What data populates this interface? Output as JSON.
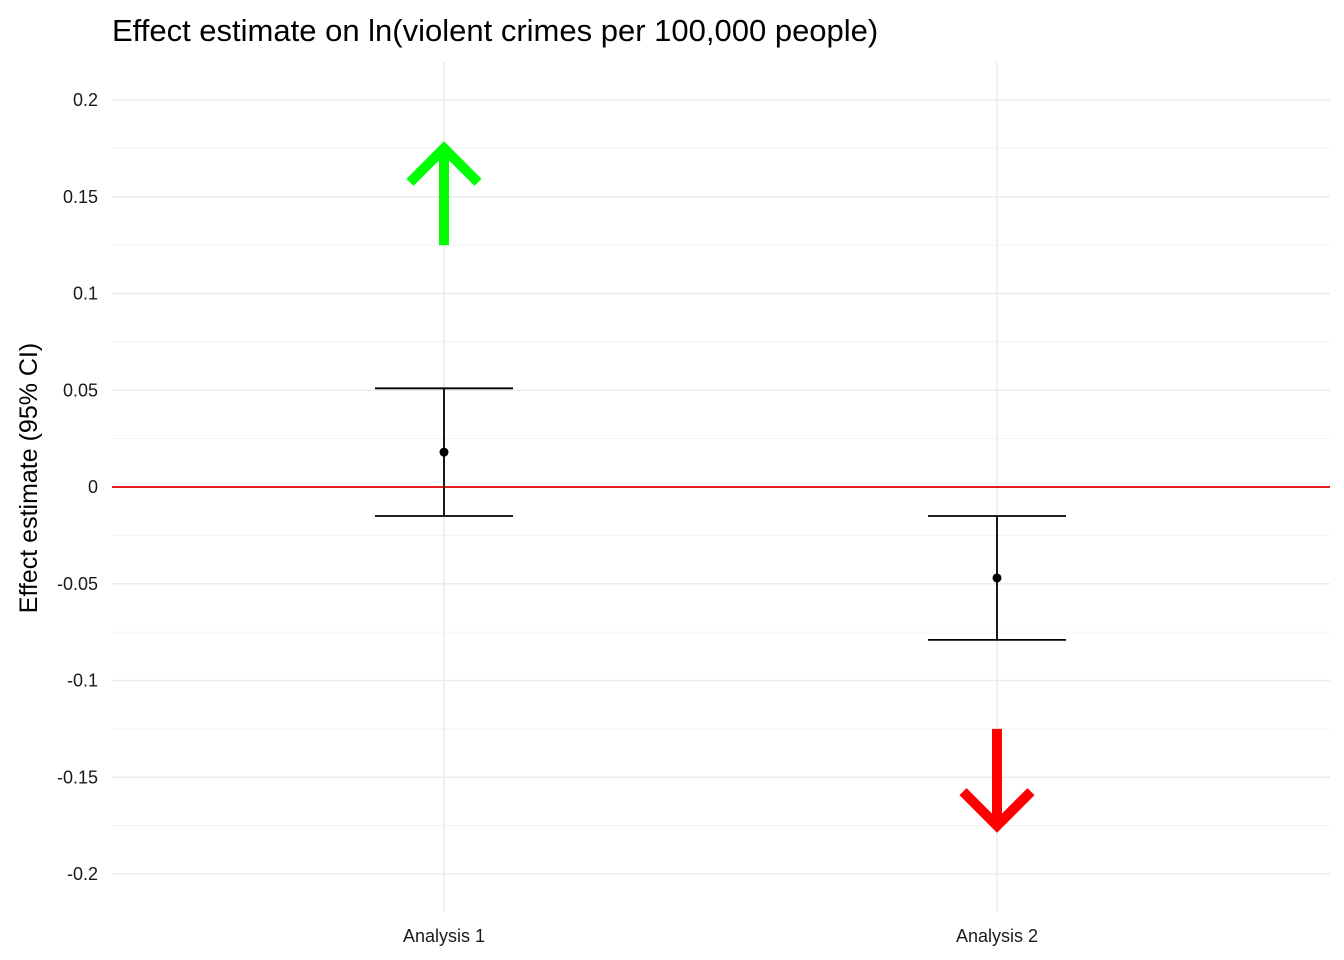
{
  "chart_data": {
    "type": "errorbar",
    "title": "Effect estimate on ln(violent crimes per 100,000 people)",
    "xlabel": "",
    "ylabel": "Effect estimate (95% CI)",
    "ylim": [
      -0.21,
      0.22
    ],
    "yticks": [
      0.2,
      0.15,
      0.1,
      0.05,
      0,
      -0.05,
      -0.1,
      -0.15,
      -0.2
    ],
    "ytick_labels": [
      "0.2",
      "0.15",
      "0.1",
      "0.05",
      "0",
      "-0.05",
      "-0.1",
      "-0.15",
      "-0.2"
    ],
    "categories": [
      "Analysis 1",
      "Analysis 2"
    ],
    "estimates": [
      0.018,
      -0.047
    ],
    "ci_lower": [
      -0.015,
      -0.079
    ],
    "ci_upper": [
      0.051,
      -0.015
    ],
    "reference_line": {
      "y": 0,
      "color": "#e00000"
    },
    "arrows": [
      {
        "category": "Analysis 1",
        "direction": "up",
        "from": 0.125,
        "to": 0.175,
        "color": "#00ff00"
      },
      {
        "category": "Analysis 2",
        "direction": "down",
        "from": -0.125,
        "to": -0.175,
        "color": "#ff0000"
      }
    ],
    "grid": true,
    "legend": "none"
  }
}
